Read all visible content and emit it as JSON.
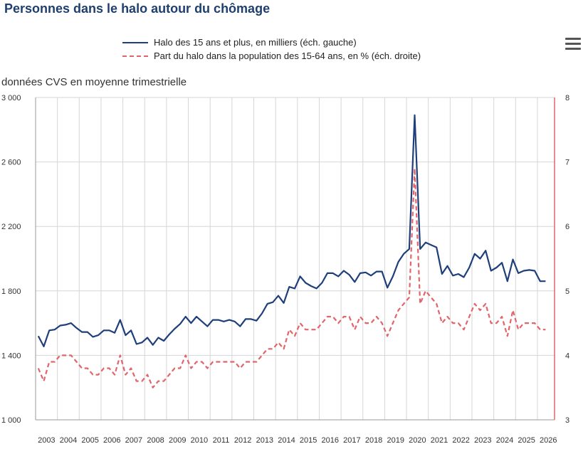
{
  "chart_data": {
    "type": "line",
    "title": "Personnes dans le halo autour du chômage",
    "subtitle": "données CVS en moyenne trimestrielle",
    "x_tick_labels": [
      "2003",
      "2004",
      "2005",
      "2006",
      "2007",
      "2008",
      "2009",
      "2010",
      "2011",
      "2012",
      "2013",
      "2014",
      "2015",
      "2016",
      "2017",
      "2018",
      "2019",
      "2020",
      "2021",
      "2022",
      "2023",
      "2024",
      "2025",
      "2026"
    ],
    "x_start": 2003.0,
    "x_step": 0.25,
    "y_left": {
      "ylim": [
        1000,
        3000
      ],
      "ticks": [
        1000,
        1400,
        1800,
        2200,
        2600,
        3000
      ],
      "tick_labels": [
        "1 000",
        "1 400",
        "1 800",
        "2 200",
        "2 600",
        "3 000"
      ]
    },
    "y_right": {
      "ylim": [
        3,
        8
      ],
      "ticks": [
        3,
        4,
        5,
        6,
        7,
        8
      ],
      "tick_labels": [
        "3",
        "4",
        "5",
        "6",
        "7",
        "8"
      ]
    },
    "grid": true,
    "legend_position": "top",
    "series": [
      {
        "name": "Halo des 15 ans et plus, en milliers (éch. gauche)",
        "axis": "left",
        "style": "solid",
        "color": "#1f3f7a",
        "values": [
          1520,
          1455,
          1555,
          1560,
          1585,
          1590,
          1600,
          1570,
          1545,
          1545,
          1515,
          1525,
          1555,
          1555,
          1540,
          1620,
          1525,
          1555,
          1470,
          1480,
          1510,
          1465,
          1510,
          1490,
          1530,
          1565,
          1595,
          1640,
          1600,
          1640,
          1610,
          1580,
          1620,
          1620,
          1610,
          1620,
          1610,
          1580,
          1625,
          1625,
          1615,
          1660,
          1720,
          1730,
          1770,
          1725,
          1825,
          1815,
          1890,
          1850,
          1830,
          1815,
          1850,
          1910,
          1910,
          1890,
          1925,
          1900,
          1855,
          1910,
          1915,
          1895,
          1920,
          1920,
          1820,
          1890,
          1980,
          2030,
          2060,
          2890,
          2060,
          2100,
          2085,
          2070,
          1905,
          1955,
          1895,
          1905,
          1885,
          1945,
          2030,
          2000,
          2050,
          1925,
          1945,
          1975,
          1860,
          1995,
          1910,
          1925,
          1930,
          1925,
          1860,
          1860
        ]
      },
      {
        "name": "Part du halo dans la population des 15-64 ans, en % (éch. droite)",
        "axis": "right",
        "style": "dashed",
        "color": "#e0666b",
        "values": [
          3.8,
          3.6,
          3.9,
          3.9,
          4.0,
          4.0,
          4.0,
          3.9,
          3.8,
          3.8,
          3.7,
          3.7,
          3.8,
          3.8,
          3.7,
          4.0,
          3.7,
          3.8,
          3.6,
          3.6,
          3.7,
          3.5,
          3.6,
          3.6,
          3.7,
          3.8,
          3.8,
          4.0,
          3.8,
          3.9,
          3.9,
          3.8,
          3.9,
          3.9,
          3.9,
          3.9,
          3.9,
          3.8,
          3.9,
          3.9,
          3.9,
          4.0,
          4.1,
          4.1,
          4.2,
          4.1,
          4.4,
          4.3,
          4.5,
          4.4,
          4.4,
          4.4,
          4.5,
          4.6,
          4.6,
          4.5,
          4.6,
          4.6,
          4.4,
          4.6,
          4.5,
          4.5,
          4.6,
          4.5,
          4.3,
          4.5,
          4.7,
          4.8,
          4.9,
          6.9,
          4.8,
          5.0,
          4.9,
          4.8,
          4.5,
          4.6,
          4.5,
          4.5,
          4.4,
          4.6,
          4.8,
          4.7,
          4.8,
          4.5,
          4.5,
          4.6,
          4.3,
          4.7,
          4.4,
          4.5,
          4.5,
          4.5,
          4.4,
          4.4
        ]
      }
    ]
  },
  "menu_icon": "hamburger-menu-icon"
}
